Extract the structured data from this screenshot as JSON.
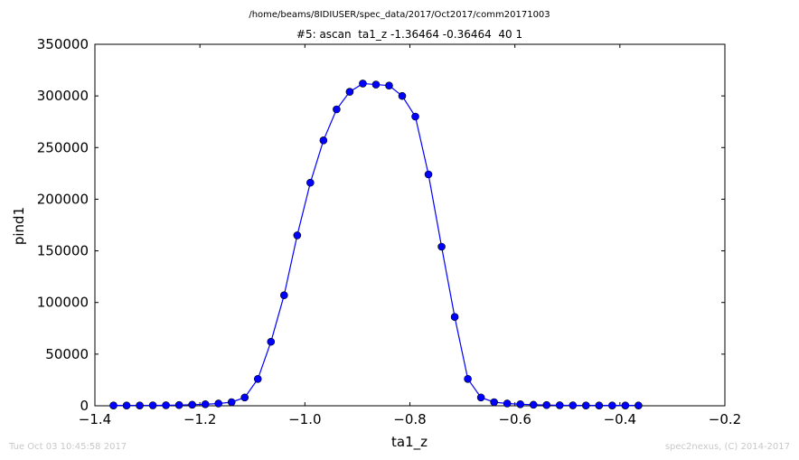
{
  "suptitle": "/home/beams/8IDIUSER/spec_data/2017/Oct2017/comm20171003",
  "footer": {
    "left": "Tue Oct 03 10:45:58 2017",
    "right": "spec2nexus, (C) 2014-2017"
  },
  "colors": {
    "series": "#0000ff",
    "axes": "#000000",
    "footer": "#c8c8c8"
  },
  "chart_data": {
    "type": "line",
    "title": "#5: ascan  ta1_z -1.36464 -0.36464  40 1",
    "xlabel": "ta1_z",
    "ylabel": "pind1",
    "xlim": [
      -1.4,
      -0.2
    ],
    "ylim": [
      0,
      350000
    ],
    "xticks": [
      -1.4,
      -1.2,
      -1.0,
      -0.8,
      -0.6,
      -0.4,
      -0.2
    ],
    "xtick_labels": [
      "−1.4",
      "−1.2",
      "−1.0",
      "−0.8",
      "−0.6",
      "−0.4",
      "−0.2"
    ],
    "yticks": [
      0,
      50000,
      100000,
      150000,
      200000,
      250000,
      300000,
      350000
    ],
    "ytick_labels": [
      "0",
      "50000",
      "100000",
      "150000",
      "200000",
      "250000",
      "300000",
      "350000"
    ],
    "grid": false,
    "markers": "circle",
    "x": [
      -1.36464,
      -1.33964,
      -1.31464,
      -1.28964,
      -1.26464,
      -1.23964,
      -1.21464,
      -1.18964,
      -1.16464,
      -1.13964,
      -1.11464,
      -1.08964,
      -1.06464,
      -1.03964,
      -1.01464,
      -0.98964,
      -0.96464,
      -0.93964,
      -0.91464,
      -0.88964,
      -0.86464,
      -0.83964,
      -0.81464,
      -0.78964,
      -0.76464,
      -0.73964,
      -0.71464,
      -0.68964,
      -0.66464,
      -0.63964,
      -0.61464,
      -0.58964,
      -0.56464,
      -0.53964,
      -0.51464,
      -0.48964,
      -0.46464,
      -0.43964,
      -0.41464,
      -0.38964,
      -0.36464
    ],
    "y": [
      300,
      300,
      300,
      400,
      500,
      700,
      1000,
      1500,
      2200,
      3500,
      8000,
      26000,
      62000,
      107000,
      165000,
      216000,
      257000,
      287000,
      304000,
      312000,
      311000,
      310000,
      300000,
      280000,
      224000,
      154000,
      86000,
      26000,
      8000,
      3500,
      2200,
      1500,
      1000,
      700,
      500,
      400,
      300,
      300,
      300,
      300,
      300
    ]
  }
}
